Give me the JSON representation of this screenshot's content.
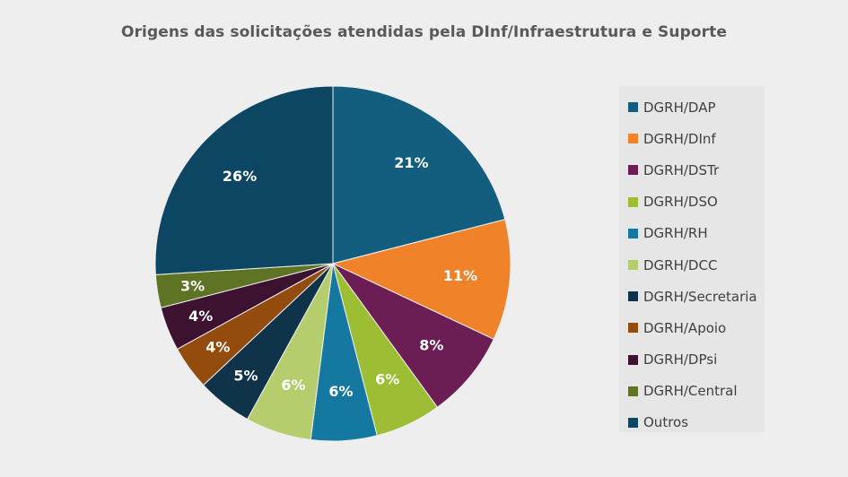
{
  "chart_data": {
    "type": "pie",
    "title": "Origens das solicitações atendidas pela DInf/Infraestrutura e Suporte",
    "legend_position": "right",
    "slices": [
      {
        "label": "DGRH/DAP",
        "value": 21,
        "display": "21%",
        "color": "#135e7e"
      },
      {
        "label": "DGRH/DInf",
        "value": 11,
        "display": "11%",
        "color": "#f0822a"
      },
      {
        "label": "DGRH/DSTr",
        "value": 8,
        "display": "8%",
        "color": "#6b1d54"
      },
      {
        "label": "DGRH/DSO",
        "value": 6,
        "display": "6%",
        "color": "#9dbd35"
      },
      {
        "label": "DGRH/RH",
        "value": 6,
        "display": "6%",
        "color": "#1478a0"
      },
      {
        "label": "DGRH/DCC",
        "value": 6,
        "display": "6%",
        "color": "#b6cd6e"
      },
      {
        "label": "DGRH/Secretaria",
        "value": 5,
        "display": "5%",
        "color": "#0f3349"
      },
      {
        "label": "DGRH/Apoio",
        "value": 4,
        "display": "4%",
        "color": "#944b0e"
      },
      {
        "label": "DGRH/DPsi",
        "value": 4,
        "display": "4%",
        "color": "#3c1230"
      },
      {
        "label": "DGRH/Central",
        "value": 3,
        "display": "3%",
        "color": "#5e7424"
      },
      {
        "label": "Outros",
        "value": 26,
        "display": "26%",
        "color": "#0d4663"
      }
    ]
  }
}
